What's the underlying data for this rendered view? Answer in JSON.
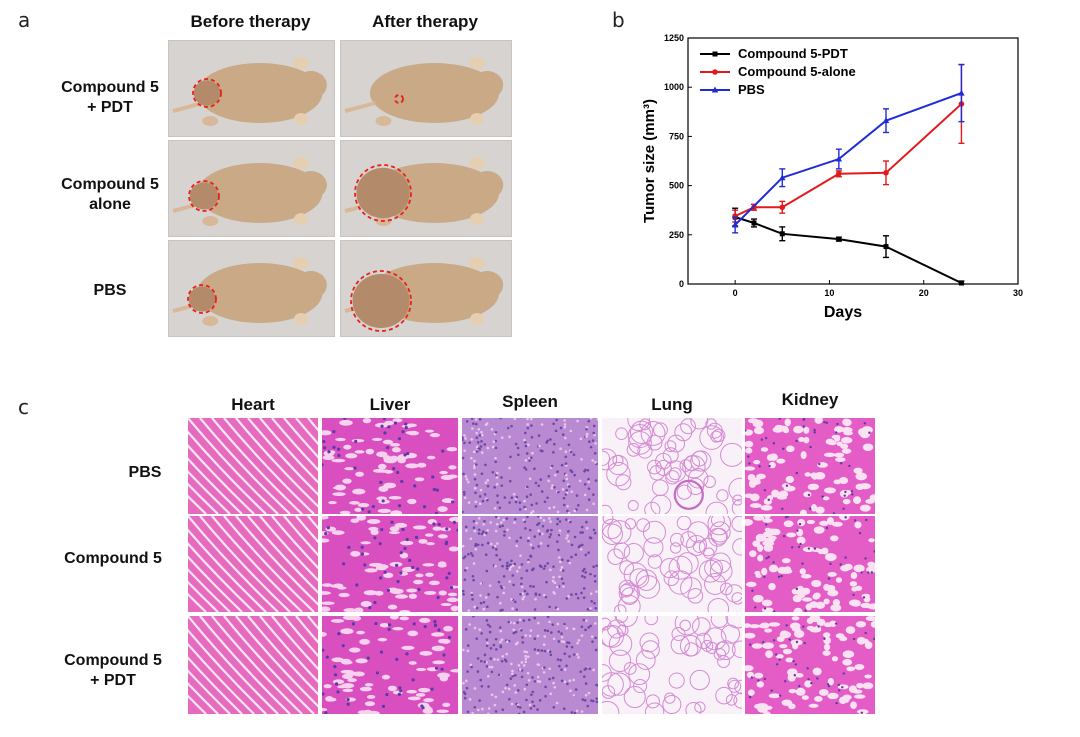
{
  "panel_a": {
    "letter": "a",
    "col_headers": [
      "Before therapy",
      "After therapy"
    ],
    "row_labels": [
      "Compound 5\n+ PDT",
      "Compound 5\nalone",
      "PBS"
    ]
  },
  "panel_b": {
    "letter": "b"
  },
  "panel_c": {
    "letter": "c",
    "col_headers": [
      "Heart",
      "Liver",
      "Spleen",
      "Lung",
      "Kidney"
    ],
    "row_labels": [
      "PBS",
      "Compound 5",
      "Compound 5\n+ PDT"
    ]
  },
  "chart_data": {
    "type": "line",
    "xlabel": "Days",
    "ylabel": "Tumor size (mm³)",
    "xlim": [
      -5,
      30
    ],
    "ylim": [
      0,
      1250
    ],
    "xticks": [
      0,
      10,
      20,
      30
    ],
    "yticks": [
      0,
      250,
      500,
      750,
      1000,
      1250
    ],
    "legend_position": "top-left",
    "series": [
      {
        "name": "Compound 5-PDT",
        "color": "#000000",
        "marker": "square",
        "x": [
          0,
          2,
          5,
          11,
          16,
          24
        ],
        "y": [
          340,
          310,
          255,
          228,
          190,
          5
        ],
        "err": [
          45,
          20,
          35,
          10,
          55,
          10
        ]
      },
      {
        "name": "Compound 5-alone",
        "color": "#e31a1c",
        "marker": "circle",
        "x": [
          0,
          2,
          5,
          11,
          16,
          24
        ],
        "y": [
          345,
          390,
          390,
          560,
          565,
          915
        ],
        "err": [
          30,
          15,
          30,
          15,
          60,
          200
        ]
      },
      {
        "name": "PBS",
        "color": "#1f2bd6",
        "marker": "triangle",
        "x": [
          0,
          5,
          11,
          16,
          24
        ],
        "y": [
          300,
          540,
          635,
          830,
          970
        ],
        "err": [
          40,
          45,
          50,
          60,
          145
        ]
      }
    ]
  }
}
